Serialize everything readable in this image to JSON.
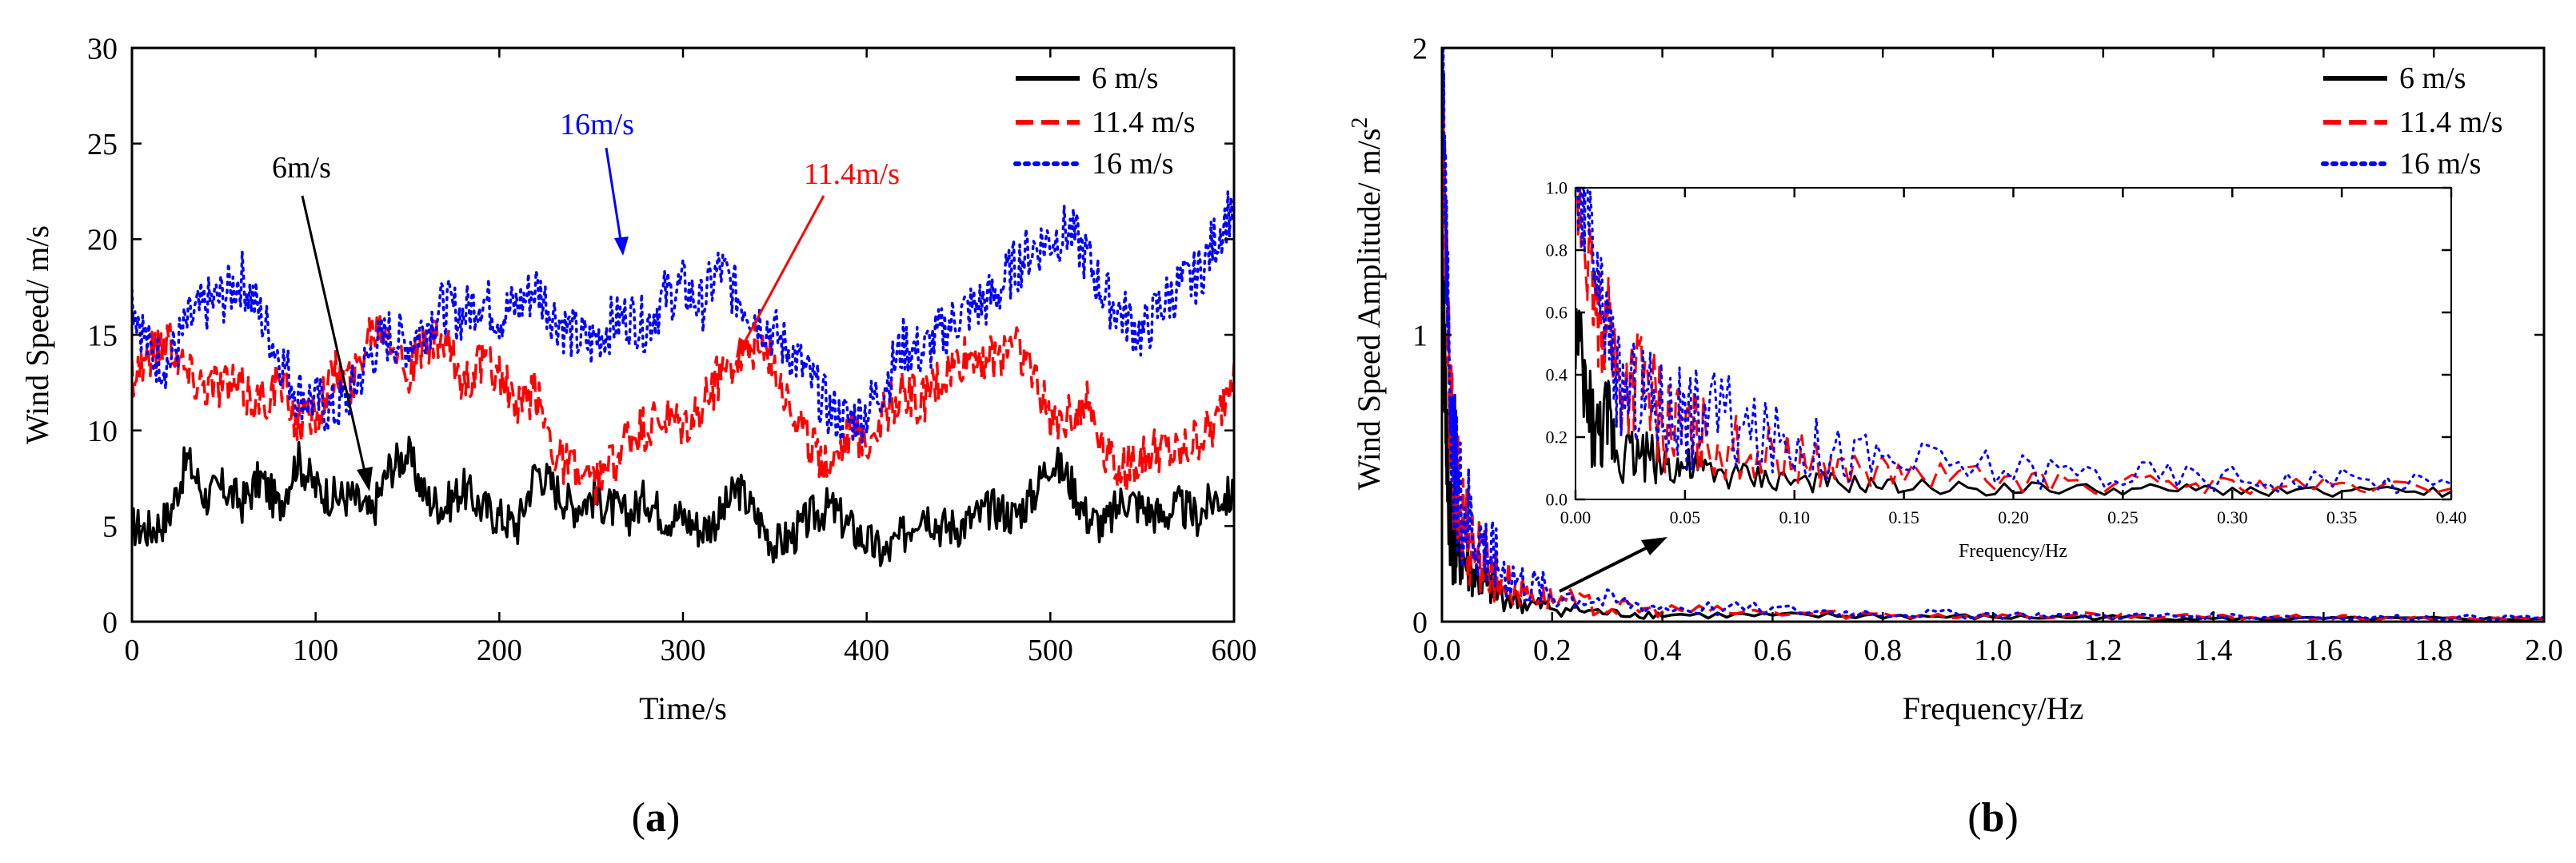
{
  "figure": {
    "panels": [
      "(a)",
      "(b)"
    ]
  },
  "chart_data": [
    {
      "id": "a",
      "type": "line",
      "panel_label": "(a)",
      "xlabel": "Time/s",
      "ylabel": "Wind Speed/ m/s",
      "xlim": [
        0,
        600
      ],
      "ylim": [
        0,
        30
      ],
      "xticks": [
        0,
        100,
        200,
        300,
        400,
        500,
        600
      ],
      "yticks": [
        0,
        5,
        10,
        15,
        20,
        25,
        30
      ],
      "grid": false,
      "legend_position": "top-right",
      "series": [
        {
          "name": "6 m/s",
          "color": "#000000",
          "style": "solid",
          "x": [
            0,
            10,
            20,
            30,
            40,
            50,
            60,
            70,
            80,
            90,
            100,
            110,
            120,
            130,
            140,
            150,
            160,
            170,
            180,
            190,
            200,
            210,
            220,
            230,
            240,
            250,
            260,
            270,
            280,
            290,
            300,
            310,
            320,
            330,
            340,
            350,
            360,
            370,
            380,
            390,
            400,
            410,
            420,
            430,
            440,
            450,
            460,
            470,
            480,
            490,
            500,
            510,
            520,
            530,
            540,
            550,
            560,
            570,
            580,
            590,
            600
          ],
          "y": [
            5.0,
            4.8,
            5.5,
            8.5,
            6.5,
            7.0,
            6.2,
            7.5,
            6.0,
            8.5,
            7.0,
            6.5,
            6.5,
            5.5,
            8.0,
            8.8,
            6.5,
            6.0,
            7.0,
            6.0,
            5.5,
            5.0,
            8.0,
            7.0,
            6.0,
            6.5,
            6.0,
            5.5,
            6.5,
            5.5,
            5.5,
            4.8,
            5.5,
            7.0,
            5.5,
            4.0,
            4.5,
            5.5,
            6.0,
            5.0,
            4.2,
            3.5,
            4.5,
            6.0,
            5.0,
            5.0,
            5.5,
            6.0,
            5.5,
            6.5,
            8.5,
            7.5,
            5.5,
            5.0,
            6.5,
            6.0,
            5.5,
            6.0,
            5.5,
            6.5,
            6.5
          ]
        },
        {
          "name": "11.4 m/s",
          "color": "#ff0000",
          "style": "dash",
          "x": [
            0,
            10,
            20,
            30,
            40,
            50,
            60,
            70,
            80,
            90,
            100,
            110,
            120,
            130,
            140,
            150,
            160,
            170,
            180,
            190,
            200,
            210,
            220,
            230,
            240,
            250,
            260,
            270,
            280,
            290,
            300,
            310,
            320,
            330,
            340,
            350,
            360,
            370,
            380,
            390,
            400,
            410,
            420,
            430,
            440,
            450,
            460,
            470,
            480,
            490,
            500,
            510,
            520,
            530,
            540,
            550,
            560,
            570,
            580,
            590,
            600
          ],
          "y": [
            13.0,
            14.0,
            15.0,
            13.0,
            12.5,
            12.5,
            12.0,
            11.5,
            12.5,
            10.5,
            11.0,
            13.0,
            12.5,
            15.5,
            15.5,
            13.0,
            14.5,
            14.5,
            12.5,
            13.5,
            13.0,
            11.0,
            12.0,
            9.0,
            8.0,
            7.0,
            8.0,
            9.5,
            10.0,
            10.5,
            10.0,
            11.0,
            13.0,
            14.0,
            14.5,
            13.5,
            11.0,
            9.0,
            8.5,
            10.0,
            9.5,
            11.0,
            12.0,
            11.5,
            12.5,
            13.5,
            14.0,
            13.5,
            15.0,
            13.0,
            10.5,
            11.0,
            11.5,
            9.0,
            8.0,
            8.5,
            9.0,
            8.5,
            9.5,
            10.0,
            13.5
          ]
        },
        {
          "name": "16 m/s",
          "color": "#0000ff",
          "style": "dot",
          "x": [
            0,
            10,
            20,
            30,
            40,
            50,
            60,
            70,
            80,
            90,
            100,
            110,
            120,
            130,
            140,
            150,
            160,
            170,
            180,
            190,
            200,
            210,
            220,
            230,
            240,
            250,
            260,
            270,
            280,
            290,
            300,
            310,
            320,
            330,
            340,
            350,
            360,
            370,
            380,
            390,
            400,
            410,
            420,
            430,
            440,
            450,
            460,
            470,
            480,
            490,
            500,
            510,
            520,
            530,
            540,
            550,
            560,
            570,
            580,
            590,
            600
          ],
          "y": [
            17.0,
            14.0,
            13.5,
            15.5,
            16.5,
            17.0,
            18.0,
            16.0,
            14.0,
            12.0,
            11.5,
            11.0,
            12.0,
            14.0,
            15.0,
            14.5,
            15.5,
            16.5,
            16.0,
            17.0,
            16.0,
            16.5,
            17.5,
            16.0,
            15.0,
            14.5,
            15.5,
            16.0,
            15.5,
            17.0,
            17.5,
            16.5,
            18.5,
            17.0,
            16.0,
            15.0,
            14.0,
            12.5,
            11.0,
            10.5,
            11.0,
            12.5,
            14.5,
            14.0,
            15.0,
            16.0,
            16.5,
            17.0,
            18.5,
            19.5,
            20.0,
            20.5,
            19.0,
            17.0,
            16.0,
            15.0,
            16.5,
            17.5,
            18.0,
            20.0,
            22.0
          ]
        }
      ],
      "annotations": [
        {
          "text": "6m/s",
          "color": "#000000"
        },
        {
          "text": "16m/s",
          "color": "#0000ff"
        },
        {
          "text": "11.4m/s",
          "color": "#ff0000"
        }
      ]
    },
    {
      "id": "b",
      "type": "line",
      "panel_label": "(b)",
      "xlabel": "Frequency/Hz",
      "ylabel": "Wind Speed Amplitude/ m/s",
      "ylabel_sup": "2",
      "xlim": [
        0,
        2.0
      ],
      "ylim": [
        0,
        2
      ],
      "xticks": [
        "0.0",
        "0.2",
        "0.4",
        "0.6",
        "0.8",
        "1.0",
        "1.2",
        "1.4",
        "1.6",
        "1.8",
        "2.0"
      ],
      "yticks": [
        "0",
        "1",
        "2"
      ],
      "grid": false,
      "legend_position": "top-right",
      "series": [
        {
          "name": "6 m/s",
          "color": "#000000",
          "style": "solid",
          "x": [
            0.0,
            0.005,
            0.01,
            0.02,
            0.03,
            0.05,
            0.08,
            0.1,
            0.15,
            0.2,
            0.3,
            0.4,
            0.6,
            0.8,
            1.0,
            1.2,
            1.4,
            1.6,
            1.8,
            2.0
          ],
          "y": [
            1.2,
            0.9,
            0.5,
            0.3,
            0.25,
            0.18,
            0.12,
            0.1,
            0.06,
            0.05,
            0.03,
            0.025,
            0.02,
            0.02,
            0.015,
            0.015,
            0.01,
            0.01,
            0.01,
            0.01
          ]
        },
        {
          "name": "11.4 m/s",
          "color": "#ff0000",
          "style": "dash",
          "x": [
            0.0,
            0.005,
            0.01,
            0.02,
            0.03,
            0.05,
            0.08,
            0.1,
            0.15,
            0.2,
            0.3,
            0.4,
            0.6,
            0.8,
            1.0,
            1.2,
            1.4,
            1.6,
            1.8,
            2.0
          ],
          "y": [
            1.9,
            1.5,
            1.0,
            0.55,
            0.4,
            0.3,
            0.2,
            0.16,
            0.1,
            0.08,
            0.05,
            0.04,
            0.03,
            0.025,
            0.02,
            0.02,
            0.015,
            0.015,
            0.01,
            0.01
          ]
        },
        {
          "name": "16 m/s",
          "color": "#0000ff",
          "style": "dot",
          "x": [
            0.0,
            0.005,
            0.01,
            0.02,
            0.03,
            0.05,
            0.08,
            0.1,
            0.15,
            0.2,
            0.3,
            0.4,
            0.6,
            0.8,
            1.0,
            1.2,
            1.4,
            1.6,
            1.8,
            2.0
          ],
          "y": [
            2.0,
            1.7,
            1.1,
            0.6,
            0.45,
            0.35,
            0.25,
            0.2,
            0.13,
            0.1,
            0.07,
            0.05,
            0.04,
            0.03,
            0.025,
            0.02,
            0.02,
            0.015,
            0.015,
            0.015
          ]
        }
      ],
      "inset": {
        "xlabel": "Frequency/Hz",
        "xlim": [
          0,
          0.4
        ],
        "ylim": [
          0,
          1.0
        ],
        "xticks": [
          "0.00",
          "0.05",
          "0.10",
          "0.15",
          "0.20",
          "0.25",
          "0.30",
          "0.35",
          "0.40"
        ],
        "yticks": [
          "0.0",
          "0.2",
          "0.4",
          "0.6",
          "0.8",
          "1.0"
        ],
        "series": [
          {
            "name": "6 m/s",
            "color": "#000000",
            "style": "solid",
            "x": [
              0.0,
              0.005,
              0.01,
              0.015,
              0.02,
              0.03,
              0.04,
              0.05,
              0.06,
              0.08,
              0.1,
              0.12,
              0.15,
              0.2,
              0.25,
              0.3,
              0.35,
              0.4
            ],
            "y": [
              0.55,
              0.3,
              0.2,
              0.25,
              0.15,
              0.15,
              0.12,
              0.1,
              0.09,
              0.07,
              0.06,
              0.05,
              0.04,
              0.035,
              0.03,
              0.03,
              0.025,
              0.025
            ]
          },
          {
            "name": "11.4 m/s",
            "color": "#ff0000",
            "style": "dash",
            "x": [
              0.0,
              0.005,
              0.01,
              0.015,
              0.02,
              0.03,
              0.04,
              0.05,
              0.06,
              0.08,
              0.1,
              0.12,
              0.15,
              0.2,
              0.25,
              0.3,
              0.35,
              0.4
            ],
            "y": [
              0.95,
              0.8,
              0.55,
              0.6,
              0.35,
              0.4,
              0.25,
              0.22,
              0.2,
              0.15,
              0.13,
              0.1,
              0.08,
              0.06,
              0.05,
              0.045,
              0.04,
              0.035
            ]
          },
          {
            "name": "16 m/s",
            "color": "#0000ff",
            "style": "dot",
            "x": [
              0.0,
              0.005,
              0.01,
              0.015,
              0.02,
              0.03,
              0.04,
              0.05,
              0.06,
              0.08,
              0.1,
              0.12,
              0.15,
              0.2,
              0.25,
              0.3,
              0.35,
              0.4
            ],
            "y": [
              1.0,
              0.95,
              0.65,
              0.55,
              0.35,
              0.35,
              0.3,
              0.25,
              0.3,
              0.2,
              0.18,
              0.15,
              0.12,
              0.1,
              0.08,
              0.07,
              0.06,
              0.05
            ]
          }
        ]
      }
    }
  ]
}
